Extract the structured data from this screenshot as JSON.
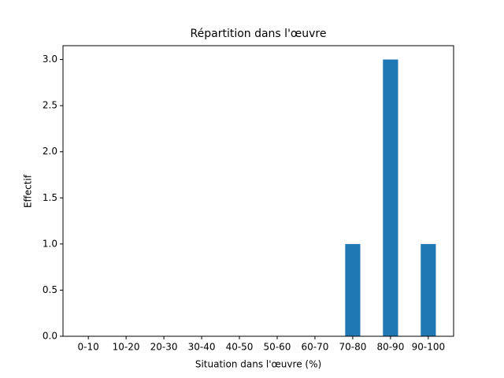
{
  "chart_data": {
    "type": "bar",
    "title": "Répartition dans l'œuvre",
    "x_label": "Situation dans l'œuvre (%)",
    "y_label": "Effectif",
    "categories": [
      "0-10",
      "10-20",
      "20-30",
      "30-40",
      "40-50",
      "50-60",
      "60-70",
      "70-80",
      "80-90",
      "90-100"
    ],
    "values": [
      0,
      0,
      0,
      0,
      0,
      0,
      0,
      1,
      3,
      1
    ],
    "color": "#1f77b4",
    "ylim": [
      0,
      3.15
    ],
    "yticks": [
      {
        "value": 0,
        "label": "0.0"
      },
      {
        "value": 0.5,
        "label": "0.5"
      },
      {
        "value": 1,
        "label": "1.0"
      },
      {
        "value": 1.5,
        "label": "1.5"
      },
      {
        "value": 2,
        "label": "2.0"
      },
      {
        "value": 2.5,
        "label": "2.5"
      },
      {
        "value": 3,
        "label": "3.0"
      }
    ],
    "grid": false
  }
}
